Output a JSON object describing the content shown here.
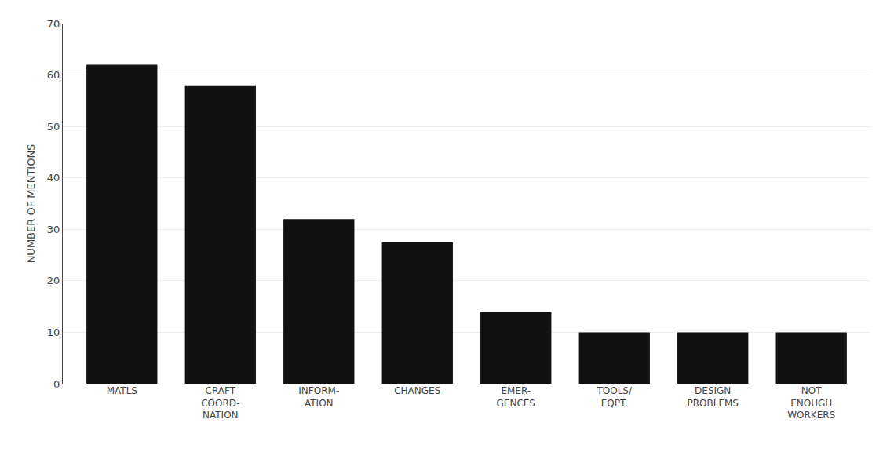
{
  "chart_data": {
    "type": "bar",
    "categories": [
      "MATLS",
      "CRAFT\nCOORD-\nNATION",
      "INFORM-\nATION",
      "CHANGES",
      "EMER-\nGENCES",
      "TOOLS/\nEQPT.",
      "DESIGN\nPROBLEMS",
      "NOT\nENOUGH\nWORKERS"
    ],
    "values": [
      62,
      58,
      32,
      27.5,
      14,
      10,
      10,
      10
    ],
    "color": "#111111",
    "ylabel": "NUMBER OF MENTIONS",
    "ylim": [
      0,
      70
    ],
    "yticks": [
      0,
      10,
      20,
      30,
      40,
      50,
      60,
      70
    ],
    "grid": true
  }
}
